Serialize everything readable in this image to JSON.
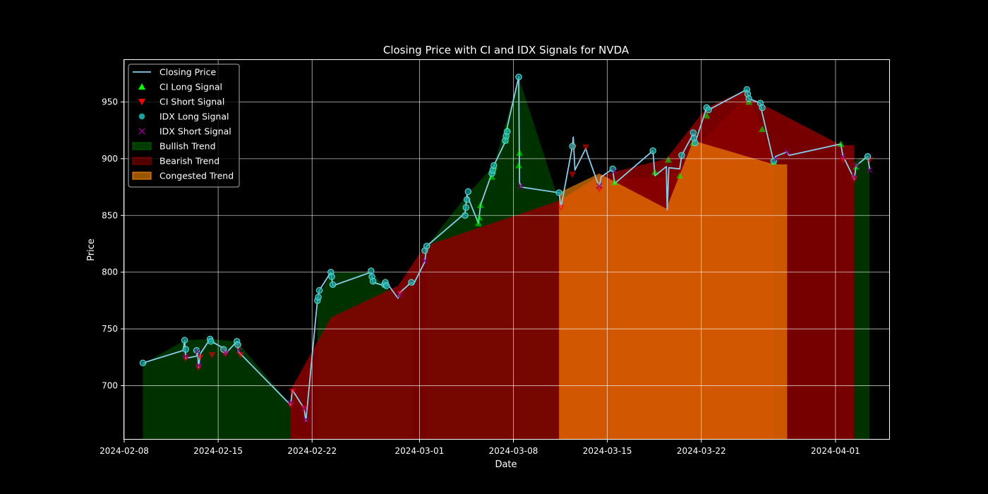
{
  "chart_data": {
    "type": "line",
    "title": "Closing Price with CI and IDX Signals for NVDA",
    "xlabel": "Date",
    "ylabel": "Price",
    "xlim": [
      "2024-02-08",
      "2024-04-05"
    ],
    "ylim": [
      653,
      987
    ],
    "grid": true,
    "legend_position": "top-left",
    "x_ticks": [
      "2024-02-08",
      "2024-02-15",
      "2024-02-22",
      "2024-03-01",
      "2024-03-08",
      "2024-03-15",
      "2024-03-22",
      "2024-04-01"
    ],
    "y_ticks": [
      700,
      750,
      800,
      850,
      900,
      950
    ],
    "colors": {
      "background": "#000000",
      "closing_price": "#87ceeb",
      "ci_long": "#00ff00",
      "ci_short": "#ff0000",
      "idx_long": "#17a2a2",
      "idx_short": "#800080",
      "bullish": "#006400",
      "bearish": "#8b0000",
      "congested": "#ff8c00",
      "grid": "#ffffff",
      "text": "#ffffff"
    },
    "legend": [
      {
        "label": "Closing Price",
        "kind": "line",
        "color": "#87ceeb"
      },
      {
        "label": "CI Long Signal",
        "kind": "triangle-up",
        "color": "#00ff00"
      },
      {
        "label": "CI Short Signal",
        "kind": "triangle-down",
        "color": "#ff0000"
      },
      {
        "label": "IDX Long Signal",
        "kind": "circle",
        "color": "#17a2a2"
      },
      {
        "label": "IDX Short Signal",
        "kind": "x",
        "color": "#800080"
      },
      {
        "label": "Bullish Trend",
        "kind": "patch",
        "color": "#006400"
      },
      {
        "label": "Bearish Trend",
        "kind": "patch",
        "color": "#8b0000"
      },
      {
        "label": "Congested Trend",
        "kind": "patch",
        "color": "#ff8c00"
      }
    ],
    "closing_price": [
      [
        "2024-02-09 09:30",
        719
      ],
      [
        "2024-02-09 16:00",
        721
      ],
      [
        "2024-02-12 09:30",
        731
      ],
      [
        "2024-02-12 12:00",
        740
      ],
      [
        "2024-02-12 14:00",
        724
      ],
      [
        "2024-02-13 09:30",
        726
      ],
      [
        "2024-02-13 11:00",
        731
      ],
      [
        "2024-02-13 13:00",
        716
      ],
      [
        "2024-02-13 16:00",
        728
      ],
      [
        "2024-02-14 09:30",
        741
      ],
      [
        "2024-02-14 12:00",
        739
      ],
      [
        "2024-02-15 09:30",
        733
      ],
      [
        "2024-02-15 13:00",
        728
      ],
      [
        "2024-02-16 09:30",
        739
      ],
      [
        "2024-02-16 12:00",
        730
      ],
      [
        "2024-02-20 09:30",
        683
      ],
      [
        "2024-02-20 13:00",
        696
      ],
      [
        "2024-02-21 09:30",
        680
      ],
      [
        "2024-02-21 13:00",
        669
      ],
      [
        "2024-02-22 09:30",
        775
      ],
      [
        "2024-02-22 13:00",
        784
      ],
      [
        "2024-02-23 09:30",
        800
      ],
      [
        "2024-02-23 13:00",
        788
      ],
      [
        "2024-02-26 09:30",
        800
      ],
      [
        "2024-02-26 13:00",
        791
      ],
      [
        "2024-02-27 09:30",
        788
      ],
      [
        "2024-02-27 13:00",
        791
      ],
      [
        "2024-02-28 09:30",
        777
      ],
      [
        "2024-02-28 13:00",
        782
      ],
      [
        "2024-02-29 09:30",
        791
      ],
      [
        "2024-02-29 13:00",
        789
      ],
      [
        "2024-03-01 09:30",
        809
      ],
      [
        "2024-03-01 13:00",
        823
      ],
      [
        "2024-03-04 09:30",
        852
      ],
      [
        "2024-03-04 13:00",
        868
      ],
      [
        "2024-03-05 09:30",
        843
      ],
      [
        "2024-03-05 13:00",
        859
      ],
      [
        "2024-03-06 09:30",
        887
      ],
      [
        "2024-03-06 13:00",
        894
      ],
      [
        "2024-03-07 09:30",
        915
      ],
      [
        "2024-03-07 13:00",
        928
      ],
      [
        "2024-03-08 09:30",
        972
      ],
      [
        "2024-03-08 11:00",
        879
      ],
      [
        "2024-03-08 14:00",
        875
      ],
      [
        "2024-03-11 09:30",
        870
      ],
      [
        "2024-03-11 13:00",
        857
      ],
      [
        "2024-03-12 09:30",
        911
      ],
      [
        "2024-03-12 11:00",
        919
      ],
      [
        "2024-03-12 14:00",
        890
      ],
      [
        "2024-03-13 09:30",
        909
      ],
      [
        "2024-03-13 13:00",
        903
      ],
      [
        "2024-03-14 09:30",
        875
      ],
      [
        "2024-03-14 13:00",
        884
      ],
      [
        "2024-03-15 09:30",
        891
      ],
      [
        "2024-03-15 13:00",
        878
      ],
      [
        "2024-03-18 09:30",
        907
      ],
      [
        "2024-03-18 13:00",
        885
      ],
      [
        "2024-03-19 09:30",
        893
      ],
      [
        "2024-03-19 11:00",
        855
      ],
      [
        "2024-03-19 14:00",
        892
      ],
      [
        "2024-03-20 09:30",
        891
      ],
      [
        "2024-03-20 13:00",
        903
      ],
      [
        "2024-03-21 09:30",
        922
      ],
      [
        "2024-03-21 13:00",
        914
      ],
      [
        "2024-03-22 09:30",
        945
      ],
      [
        "2024-03-22 13:00",
        943
      ],
      [
        "2024-03-25 09:30",
        961
      ],
      [
        "2024-03-25 13:00",
        953
      ],
      [
        "2024-03-26 09:30",
        949
      ],
      [
        "2024-03-26 13:00",
        940
      ],
      [
        "2024-03-27 09:30",
        897
      ],
      [
        "2024-03-27 13:00",
        902
      ],
      [
        "2024-03-28 09:30",
        906
      ],
      [
        "2024-03-28 13:00",
        903
      ],
      [
        "2024-04-01 09:30",
        913
      ],
      [
        "2024-04-01 13:00",
        903
      ],
      [
        "2024-04-02 09:30",
        882
      ],
      [
        "2024-04-02 13:00",
        894
      ],
      [
        "2024-04-03 09:30",
        902
      ],
      [
        "2024-04-03 13:00",
        891
      ]
    ],
    "trend_areas": [
      {
        "trend": "Bullish Trend",
        "points": [
          [
            "2024-02-09 09:30",
            719
          ],
          [
            "2024-02-12 12:00",
            740
          ],
          [
            "2024-02-14 09:30",
            741
          ],
          [
            "2024-02-16 09:30",
            739
          ],
          [
            "2024-02-20 09:30",
            683
          ]
        ]
      },
      {
        "trend": "Bullish Trend",
        "points": [
          [
            "2024-02-22 09:30",
            775
          ],
          [
            "2024-02-23 09:30",
            800
          ],
          [
            "2024-02-26 09:30",
            800
          ],
          [
            "2024-02-28 09:30",
            777
          ],
          [
            "2024-02-29 13:00",
            789
          ]
        ]
      },
      {
        "trend": "Bullish Trend",
        "points": [
          [
            "2024-03-01 13:00",
            823
          ],
          [
            "2024-03-04 13:00",
            868
          ],
          [
            "2024-03-06 13:00",
            894
          ],
          [
            "2024-03-08 09:30",
            972
          ],
          [
            "2024-03-11 13:00",
            857
          ]
        ]
      },
      {
        "trend": "Bearish Trend",
        "points": [
          [
            "2024-02-20 09:30",
            696
          ],
          [
            "2024-02-23 09:30",
            760
          ],
          [
            "2024-02-28 09:30",
            788
          ],
          [
            "2024-03-01 09:30",
            823
          ],
          [
            "2024-03-08 09:30",
            851
          ],
          [
            "2024-03-11 09:30",
            863
          ],
          [
            "2024-03-13 09:30",
            875
          ],
          [
            "2024-03-15 09:30",
            882
          ],
          [
            "2024-03-19 09:30",
            884
          ],
          [
            "2024-03-25 09:30",
            955
          ],
          [
            "2024-04-01 09:30",
            912
          ],
          [
            "2024-04-02 09:30",
            912
          ]
        ]
      },
      {
        "trend": "Bearish Trend",
        "points": [
          [
            "2024-03-11 09:30",
            863
          ],
          [
            "2024-03-14 09:30",
            885
          ],
          [
            "2024-03-19 09:30",
            900
          ],
          [
            "2024-03-22 09:30",
            945
          ],
          [
            "2024-03-25 09:30",
            961
          ],
          [
            "2024-03-27 09:30",
            897
          ]
        ]
      },
      {
        "trend": "Congested Trend",
        "points": [
          [
            "2024-03-11 09:30",
            870
          ],
          [
            "2024-03-14 09:30",
            887
          ],
          [
            "2024-03-19 09:30",
            856
          ],
          [
            "2024-03-21 09:30",
            916
          ],
          [
            "2024-03-27 09:30",
            895
          ],
          [
            "2024-03-28 09:30",
            895
          ]
        ]
      },
      {
        "trend": "Bullish Trend",
        "points": [
          [
            "2024-04-02 09:30",
            898
          ],
          [
            "2024-04-03 09:30",
            903
          ],
          [
            "2024-04-03 13:00",
            898
          ]
        ]
      }
    ],
    "ci_long_signals": [
      [
        "2024-03-05 09:30",
        843
      ],
      [
        "2024-03-05 11:00",
        848
      ],
      [
        "2024-03-05 13:00",
        859
      ],
      [
        "2024-03-06 09:30",
        884
      ],
      [
        "2024-03-06 11:00",
        889
      ],
      [
        "2024-03-06 13:00",
        893
      ],
      [
        "2024-03-07 09:30",
        916
      ],
      [
        "2024-03-07 11:00",
        920
      ],
      [
        "2024-03-07 13:00",
        926
      ],
      [
        "2024-03-08 09:30",
        894
      ],
      [
        "2024-03-08 11:00",
        905
      ],
      [
        "2024-03-15 13:00",
        879
      ],
      [
        "2024-03-18 13:00",
        888
      ],
      [
        "2024-03-19 13:00",
        899
      ],
      [
        "2024-03-20 09:30",
        885
      ],
      [
        "2024-03-21 09:30",
        914
      ],
      [
        "2024-03-22 09:30",
        938
      ],
      [
        "2024-03-25 13:00",
        950
      ],
      [
        "2024-03-26 13:00",
        926
      ],
      [
        "2024-03-27 09:30",
        897
      ],
      [
        "2024-04-01 09:30",
        913
      ],
      [
        "2024-04-02 13:00",
        893
      ]
    ],
    "ci_short_signals": [
      [
        "2024-02-12 14:00",
        724
      ],
      [
        "2024-02-13 13:00",
        716
      ],
      [
        "2024-02-13 16:00",
        725
      ],
      [
        "2024-02-14 13:00",
        727
      ],
      [
        "2024-02-15 09:30",
        731
      ],
      [
        "2024-02-15 13:00",
        728
      ],
      [
        "2024-02-16 13:00",
        735
      ],
      [
        "2024-02-16 16:00",
        727
      ],
      [
        "2024-02-20 09:30",
        683
      ],
      [
        "2024-02-20 13:00",
        695
      ],
      [
        "2024-02-21 09:30",
        680
      ],
      [
        "2024-02-28 13:00",
        781
      ],
      [
        "2024-03-11 13:00",
        857
      ],
      [
        "2024-03-12 09:30",
        886
      ],
      [
        "2024-03-12 11:00",
        910
      ],
      [
        "2024-03-13 09:30",
        910
      ],
      [
        "2024-03-14 09:30",
        873
      ],
      [
        "2024-04-01 13:00",
        899
      ],
      [
        "2024-04-02 09:30",
        882
      ],
      [
        "2024-04-03 13:00",
        899
      ]
    ],
    "idx_long_signals": [
      [
        "2024-02-09 09:30",
        720
      ],
      [
        "2024-02-12 12:00",
        740
      ],
      [
        "2024-02-12 14:00",
        732
      ],
      [
        "2024-02-13 09:30",
        731
      ],
      [
        "2024-02-14 09:30",
        741
      ],
      [
        "2024-02-14 11:00",
        739
      ],
      [
        "2024-02-15 09:30",
        732
      ],
      [
        "2024-02-16 09:30",
        739
      ],
      [
        "2024-02-16 11:00",
        736
      ],
      [
        "2024-02-22 09:30",
        775
      ],
      [
        "2024-02-22 11:00",
        778
      ],
      [
        "2024-02-22 13:00",
        784
      ],
      [
        "2024-02-23 09:30",
        800
      ],
      [
        "2024-02-23 11:00",
        796
      ],
      [
        "2024-02-23 13:00",
        789
      ],
      [
        "2024-02-26 09:30",
        801
      ],
      [
        "2024-02-26 11:00",
        796
      ],
      [
        "2024-02-26 13:00",
        792
      ],
      [
        "2024-02-27 09:30",
        789
      ],
      [
        "2024-02-27 11:00",
        791
      ],
      [
        "2024-02-27 13:00",
        788
      ],
      [
        "2024-02-29 09:30",
        791
      ],
      [
        "2024-03-01 09:30",
        819
      ],
      [
        "2024-03-01 13:00",
        823
      ],
      [
        "2024-03-04 09:30",
        850
      ],
      [
        "2024-03-04 11:00",
        857
      ],
      [
        "2024-03-04 13:00",
        864
      ],
      [
        "2024-03-04 15:00",
        871
      ],
      [
        "2024-03-06 09:30",
        887
      ],
      [
        "2024-03-06 11:00",
        890
      ],
      [
        "2024-03-06 13:00",
        894
      ],
      [
        "2024-03-07 09:30",
        916
      ],
      [
        "2024-03-07 11:00",
        920
      ],
      [
        "2024-03-07 13:00",
        924
      ],
      [
        "2024-03-08 09:30",
        972
      ],
      [
        "2024-03-11 09:30",
        870
      ],
      [
        "2024-03-12 09:30",
        911
      ],
      [
        "2024-03-15 09:30",
        891
      ],
      [
        "2024-03-18 09:30",
        907
      ],
      [
        "2024-03-20 13:00",
        903
      ],
      [
        "2024-03-21 09:30",
        923
      ],
      [
        "2024-03-21 11:00",
        918
      ],
      [
        "2024-03-21 13:00",
        914
      ],
      [
        "2024-03-22 09:30",
        945
      ],
      [
        "2024-03-22 13:00",
        943
      ],
      [
        "2024-03-25 09:30",
        961
      ],
      [
        "2024-03-25 11:00",
        957
      ],
      [
        "2024-03-25 13:00",
        953
      ],
      [
        "2024-03-26 09:30",
        949
      ],
      [
        "2024-03-26 13:00",
        945
      ],
      [
        "2024-03-27 09:30",
        898
      ],
      [
        "2024-04-03 09:30",
        902
      ]
    ],
    "idx_short_signals": [
      [
        "2024-02-12 14:00",
        726
      ],
      [
        "2024-02-13 11:00",
        730
      ],
      [
        "2024-02-13 13:00",
        718
      ],
      [
        "2024-02-15 13:00",
        729
      ],
      [
        "2024-02-16 13:00",
        731
      ],
      [
        "2024-02-20 09:30",
        685
      ],
      [
        "2024-02-21 09:30",
        680
      ],
      [
        "2024-02-21 13:00",
        670
      ],
      [
        "2024-02-28 13:00",
        780
      ],
      [
        "2024-03-01 09:30",
        810
      ],
      [
        "2024-03-08 13:00",
        876
      ],
      [
        "2024-03-14 09:30",
        876
      ],
      [
        "2024-03-15 13:00",
        889
      ],
      [
        "2024-03-27 13:00",
        900
      ],
      [
        "2024-03-28 09:30",
        906
      ],
      [
        "2024-04-01 13:00",
        902
      ],
      [
        "2024-04-02 09:30",
        884
      ],
      [
        "2024-04-02 13:00",
        894
      ],
      [
        "2024-04-03 13:00",
        890
      ]
    ]
  }
}
